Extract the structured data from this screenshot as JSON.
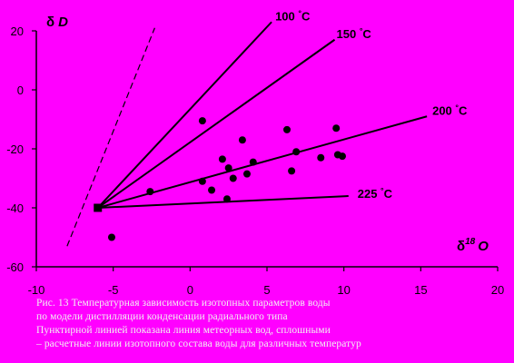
{
  "chart_data": {
    "type": "scatter",
    "x_axis": {
      "min": -10,
      "max": 20,
      "ticks": [
        -10,
        -5,
        0,
        5,
        10,
        15,
        20
      ]
    },
    "y_axis": {
      "min": -60,
      "max": 20,
      "ticks": [
        20,
        0,
        -20,
        -40,
        -60
      ]
    },
    "grid": false,
    "xlabel": {
      "greek": "δ",
      "superscript": "18",
      "letter": "O"
    },
    "ylabel": {
      "greek": "δ",
      "letter": "D"
    },
    "origin_point": {
      "x": -6,
      "y": -40
    },
    "temperature_lines": [
      {
        "label": "100",
        "unit": "°C",
        "from": {
          "x": -6,
          "y": -40
        },
        "to": {
          "x": 5.3,
          "y": 23
        }
      },
      {
        "label": "150",
        "unit": "°C",
        "from": {
          "x": -6,
          "y": -40
        },
        "to": {
          "x": 9.4,
          "y": 17
        }
      },
      {
        "label": "200",
        "unit": "°C",
        "from": {
          "x": -6,
          "y": -40
        },
        "to": {
          "x": 15.4,
          "y": -9
        }
      },
      {
        "label": "225",
        "unit": "°C",
        "from": {
          "x": -6,
          "y": -40
        },
        "to": {
          "x": 10.3,
          "y": -36
        }
      }
    ],
    "meteoric_line": {
      "style": "dashed",
      "from": {
        "x": -8,
        "y": -53
      },
      "to": {
        "x": -2.3,
        "y": 21
      }
    },
    "points": [
      {
        "x": 0.8,
        "y": -10.5
      },
      {
        "x": 6.3,
        "y": -13.5
      },
      {
        "x": 9.5,
        "y": -13
      },
      {
        "x": 3.4,
        "y": -17
      },
      {
        "x": 6.9,
        "y": -21
      },
      {
        "x": 9.6,
        "y": -22
      },
      {
        "x": 9.9,
        "y": -22.5
      },
      {
        "x": 2.1,
        "y": -23.5
      },
      {
        "x": 8.5,
        "y": -23
      },
      {
        "x": 4.1,
        "y": -24.5
      },
      {
        "x": 2.5,
        "y": -26.5
      },
      {
        "x": 6.6,
        "y": -27.5
      },
      {
        "x": 3.7,
        "y": -28.5
      },
      {
        "x": 2.8,
        "y": -30
      },
      {
        "x": 0.8,
        "y": -31
      },
      {
        "x": -2.6,
        "y": -34.5
      },
      {
        "x": 1.4,
        "y": -34
      },
      {
        "x": 2.4,
        "y": -37
      },
      {
        "x": -5.1,
        "y": -50
      }
    ]
  },
  "caption": {
    "lines": [
      "Рис. 13 Температурная зависимость изотопных параметров воды",
      "по модели дистилляции конденсации радиального типа",
      "Пунктирной линией показана линия метеорных вод, сплошными",
      "– расчетные линии изотопного состава воды для различных температур"
    ]
  }
}
